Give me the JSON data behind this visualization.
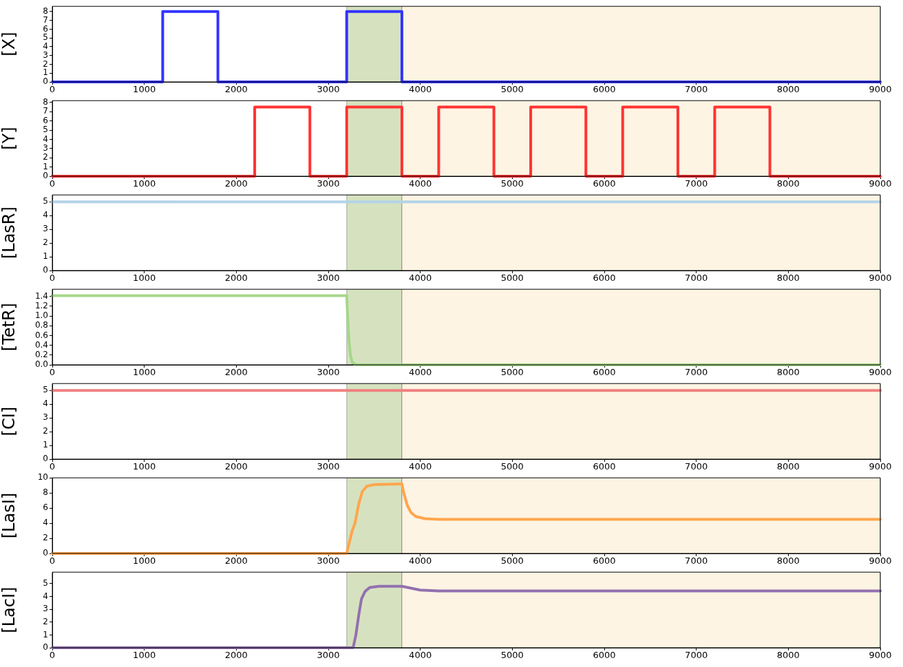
{
  "chart_data": [
    {
      "type": "line",
      "ylabel": "[X]",
      "xlim": [
        0,
        9000
      ],
      "xticks": [
        0,
        1000,
        2000,
        3000,
        4000,
        5000,
        6000,
        7000,
        8000,
        9000
      ],
      "ylim": [
        0,
        8.6
      ],
      "yticks": [
        0,
        1,
        2,
        3,
        4,
        5,
        6,
        7,
        8
      ],
      "grid": false,
      "legend": false,
      "marker": "none",
      "line_style": "solid",
      "bands": [
        {
          "axis": "x",
          "from": 3200,
          "to": 3800,
          "color": "#d6e2bf"
        },
        {
          "axis": "x",
          "from": 3800,
          "to": 9000,
          "color": "#fef4e3"
        }
      ],
      "series": [
        {
          "color": "#3333ff",
          "x": [
            0,
            1200,
            1200,
            1800,
            1800,
            3200,
            3200,
            3800,
            3800,
            9000
          ],
          "values": [
            0,
            0,
            8,
            8,
            0,
            0,
            8,
            8,
            0,
            0
          ]
        }
      ]
    },
    {
      "type": "line",
      "ylabel": "[Y]",
      "xlim": [
        0,
        9000
      ],
      "xticks": [
        0,
        1000,
        2000,
        3000,
        4000,
        5000,
        6000,
        7000,
        8000,
        9000
      ],
      "ylim": [
        0,
        8.2
      ],
      "yticks": [
        0,
        1,
        2,
        3,
        4,
        5,
        6,
        7,
        8
      ],
      "grid": false,
      "legend": false,
      "marker": "none",
      "line_style": "solid",
      "bands": [
        {
          "axis": "x",
          "from": 3200,
          "to": 3800,
          "color": "#d6e2bf"
        },
        {
          "axis": "x",
          "from": 3800,
          "to": 9000,
          "color": "#fef4e3"
        }
      ],
      "series": [
        {
          "color": "#ff3333",
          "x": [
            0,
            2200,
            2200,
            2800,
            2800,
            3200,
            3200,
            3800,
            3800,
            4200,
            4200,
            4800,
            4800,
            5200,
            5200,
            5800,
            5800,
            6200,
            6200,
            6800,
            6800,
            7200,
            7200,
            7800,
            7800,
            9000
          ],
          "values": [
            0,
            0,
            7.5,
            7.5,
            0,
            0,
            7.5,
            7.5,
            0,
            0,
            7.5,
            7.5,
            0,
            0,
            7.5,
            7.5,
            0,
            0,
            7.5,
            7.5,
            0,
            0,
            7.5,
            7.5,
            0,
            0
          ]
        }
      ]
    },
    {
      "type": "line",
      "ylabel": "[LasR]",
      "xlim": [
        0,
        9000
      ],
      "xticks": [
        0,
        1000,
        2000,
        3000,
        4000,
        5000,
        6000,
        7000,
        8000,
        9000
      ],
      "ylim": [
        0,
        5.5
      ],
      "yticks": [
        0,
        1,
        2,
        3,
        4,
        5
      ],
      "grid": false,
      "legend": false,
      "marker": "none",
      "line_style": "solid",
      "bands": [
        {
          "axis": "x",
          "from": 3200,
          "to": 3800,
          "color": "#d6e2bf"
        },
        {
          "axis": "x",
          "from": 3800,
          "to": 9000,
          "color": "#fef4e3"
        }
      ],
      "series": [
        {
          "color": "#b3d4e8",
          "x": [
            0,
            9000
          ],
          "values": [
            5,
            5
          ]
        }
      ]
    },
    {
      "type": "line",
      "ylabel": "[TetR]",
      "xlim": [
        0,
        9000
      ],
      "xticks": [
        0,
        1000,
        2000,
        3000,
        4000,
        5000,
        6000,
        7000,
        8000,
        9000
      ],
      "ylim": [
        0,
        1.55
      ],
      "yticks": [
        {
          "value": 0,
          "label": "0.0"
        },
        {
          "value": 0.2,
          "label": "0.2"
        },
        {
          "value": 0.4,
          "label": "0.4"
        },
        {
          "value": 0.6,
          "label": "0.6"
        },
        {
          "value": 0.8,
          "label": "0.8"
        },
        {
          "value": 1,
          "label": "1.0"
        },
        {
          "value": 1.2,
          "label": "1.2"
        },
        {
          "value": 1.4,
          "label": "1.4"
        }
      ],
      "grid": false,
      "legend": false,
      "marker": "none",
      "line_style": "solid",
      "bands": [
        {
          "axis": "x",
          "from": 3200,
          "to": 3800,
          "color": "#d6e2bf"
        },
        {
          "axis": "x",
          "from": 3800,
          "to": 9000,
          "color": "#fef4e3"
        }
      ],
      "series": [
        {
          "color": "#a6d68a",
          "x": [
            0,
            3200,
            3210,
            3225,
            3240,
            3260,
            3300,
            9000
          ],
          "values": [
            1.42,
            1.42,
            1.0,
            0.5,
            0.2,
            0.05,
            0,
            0
          ]
        }
      ]
    },
    {
      "type": "line",
      "ylabel": "[CI]",
      "xlim": [
        0,
        9000
      ],
      "xticks": [
        0,
        1000,
        2000,
        3000,
        4000,
        5000,
        6000,
        7000,
        8000,
        9000
      ],
      "ylim": [
        0,
        5.5
      ],
      "yticks": [
        0,
        1,
        2,
        3,
        4,
        5
      ],
      "grid": false,
      "legend": false,
      "marker": "none",
      "line_style": "solid",
      "bands": [
        {
          "axis": "x",
          "from": 3200,
          "to": 3800,
          "color": "#d6e2bf"
        },
        {
          "axis": "x",
          "from": 3800,
          "to": 9000,
          "color": "#fef4e3"
        }
      ],
      "series": [
        {
          "color": "#f08080",
          "x": [
            0,
            9000
          ],
          "values": [
            5,
            5
          ]
        }
      ]
    },
    {
      "type": "line",
      "ylabel": "[LasI]",
      "xlim": [
        0,
        9000
      ],
      "xticks": [
        0,
        1000,
        2000,
        3000,
        4000,
        5000,
        6000,
        7000,
        8000,
        9000
      ],
      "ylim": [
        0,
        10
      ],
      "yticks": [
        0,
        2,
        4,
        6,
        8,
        10
      ],
      "grid": false,
      "legend": false,
      "marker": "none",
      "line_style": "solid",
      "bands": [
        {
          "axis": "x",
          "from": 3200,
          "to": 3800,
          "color": "#d6e2bf"
        },
        {
          "axis": "x",
          "from": 3800,
          "to": 9000,
          "color": "#fef4e3"
        }
      ],
      "series": [
        {
          "color": "#ffa64d",
          "x": [
            0,
            3200,
            3230,
            3260,
            3290,
            3330,
            3370,
            3420,
            3500,
            3800,
            3820,
            3860,
            3900,
            3950,
            4050,
            4200,
            9000
          ],
          "values": [
            0,
            0,
            1.5,
            3,
            4,
            6.5,
            8.2,
            8.9,
            9.1,
            9.2,
            8,
            6.3,
            5.4,
            4.9,
            4.6,
            4.5,
            4.5
          ]
        }
      ]
    },
    {
      "type": "line",
      "ylabel": "[LacI]",
      "xlim": [
        0,
        9000
      ],
      "xticks": [
        0,
        1000,
        2000,
        3000,
        4000,
        5000,
        6000,
        7000,
        8000,
        9000
      ],
      "ylim": [
        0,
        5.9
      ],
      "yticks": [
        0,
        1,
        2,
        3,
        4,
        5
      ],
      "grid": false,
      "legend": false,
      "marker": "none",
      "line_style": "solid",
      "bands": [
        {
          "axis": "x",
          "from": 3200,
          "to": 3800,
          "color": "#d6e2bf"
        },
        {
          "axis": "x",
          "from": 3800,
          "to": 9000,
          "color": "#fef4e3"
        }
      ],
      "series": [
        {
          "color": "#9370b0",
          "x": [
            0,
            3270,
            3300,
            3330,
            3360,
            3400,
            3450,
            3550,
            3800,
            3900,
            4000,
            4200,
            9000
          ],
          "values": [
            0,
            0,
            1,
            2.5,
            3.8,
            4.4,
            4.7,
            4.8,
            4.8,
            4.65,
            4.5,
            4.43,
            4.43
          ]
        }
      ]
    }
  ]
}
